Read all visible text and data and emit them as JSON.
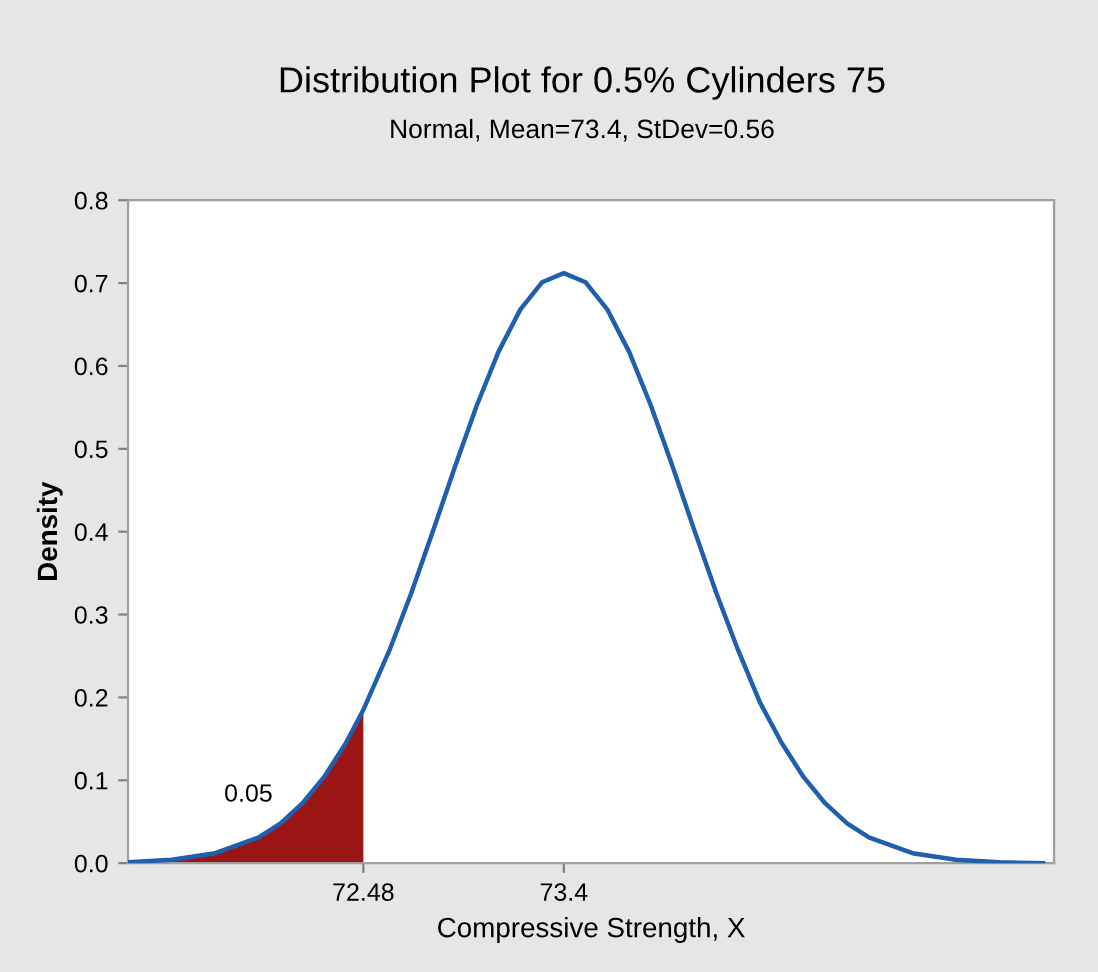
{
  "chart_data": {
    "type": "line",
    "title": "Distribution Plot for 0.5% Cylinders 75",
    "subtitle": "Normal, Mean=73.4, StDev=0.56",
    "xlabel": "Compressive Strength, X",
    "ylabel": "Density",
    "series": [
      {
        "type": "area",
        "color": "#9b1515",
        "x": [
          71.4,
          71.6,
          71.8,
          72.0,
          72.1,
          72.2,
          72.3,
          72.4,
          72.48
        ],
        "values": [
          0.001,
          0.004,
          0.012,
          0.031,
          0.048,
          0.072,
          0.104,
          0.145,
          0.185
        ]
      },
      {
        "color": "#1f5fad",
        "x": [
          71.4,
          71.6,
          71.8,
          72.0,
          72.1,
          72.2,
          72.3,
          72.4,
          72.48,
          72.6,
          72.7,
          72.8,
          72.9,
          73.0,
          73.1,
          73.2,
          73.3,
          73.4,
          73.5,
          73.6,
          73.7,
          73.8,
          73.9,
          74.0,
          74.1,
          74.2,
          74.3,
          74.4,
          74.5,
          74.6,
          74.7,
          74.8,
          75.0,
          75.2,
          75.4,
          75.6
        ],
        "values": [
          0.001,
          0.004,
          0.012,
          0.031,
          0.048,
          0.072,
          0.104,
          0.145,
          0.185,
          0.257,
          0.326,
          0.401,
          0.478,
          0.552,
          0.617,
          0.668,
          0.701,
          0.712,
          0.701,
          0.668,
          0.617,
          0.552,
          0.478,
          0.401,
          0.326,
          0.257,
          0.194,
          0.145,
          0.104,
          0.072,
          0.048,
          0.031,
          0.012,
          0.004,
          0.001,
          0.0
        ]
      }
    ],
    "xlim": [
      71.4,
      75.65
    ],
    "ylim": [
      0,
      0.8
    ],
    "xticks": [
      72.48,
      73.4
    ],
    "yticks": [
      {
        "value": 0,
        "label": "0.0"
      },
      0.1,
      0.2,
      0.3,
      0.4,
      0.5,
      0.6,
      0.7,
      0.8
    ],
    "annotations": [
      "0.05"
    ],
    "grid": false,
    "legend": false
  }
}
